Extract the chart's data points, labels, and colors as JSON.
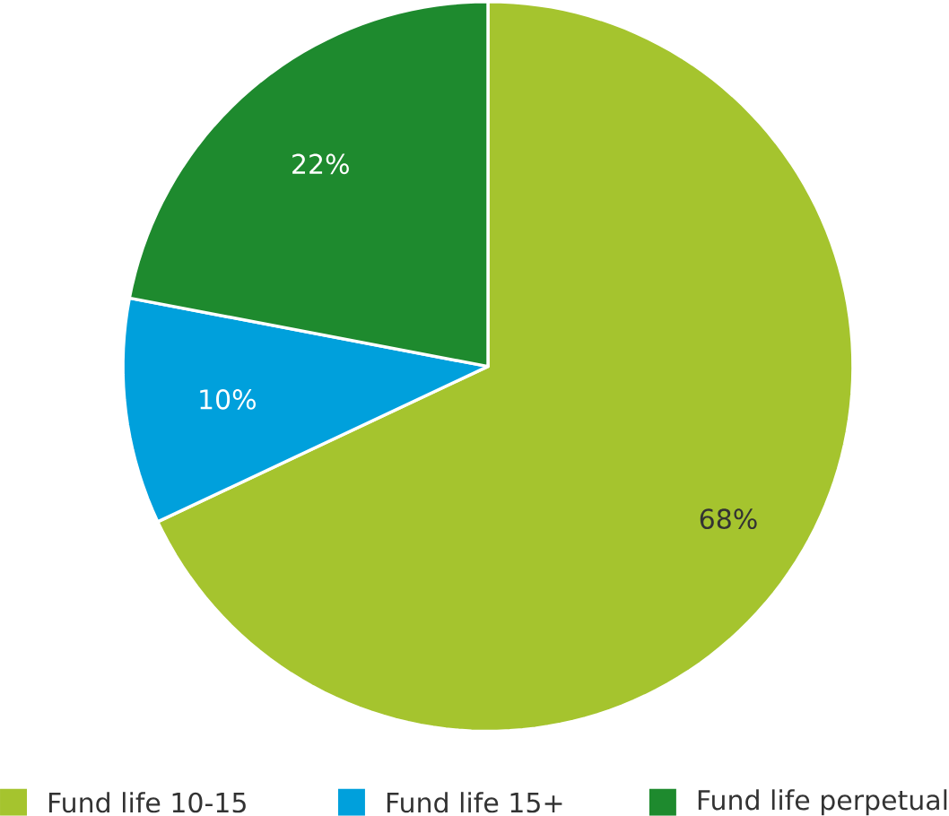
{
  "chart_data": {
    "type": "pie",
    "categories": [
      "Fund life 10-15",
      "Fund life 15+",
      "Fund life perpetual"
    ],
    "values": [
      68,
      10,
      22
    ],
    "colors": [
      "#a5c42e",
      "#00a0dc",
      "#1e8a2e"
    ],
    "value_labels": [
      "68%",
      "10%",
      "22%"
    ],
    "legend": "bottom"
  }
}
